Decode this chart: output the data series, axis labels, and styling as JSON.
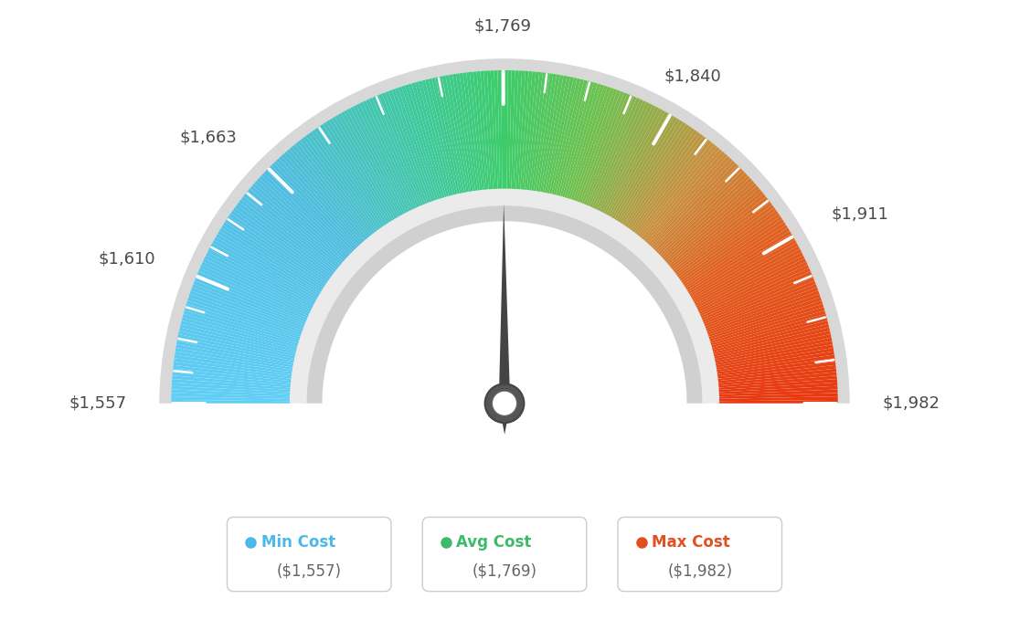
{
  "min_val": 1557,
  "avg_val": 1769,
  "max_val": 1982,
  "color_stops": [
    [
      0.0,
      "#60cef5"
    ],
    [
      0.25,
      "#50bce0"
    ],
    [
      0.4,
      "#40c8a0"
    ],
    [
      0.5,
      "#3dcc6a"
    ],
    [
      0.6,
      "#70c050"
    ],
    [
      0.72,
      "#c89040"
    ],
    [
      0.82,
      "#e06020"
    ],
    [
      1.0,
      "#e83810"
    ]
  ],
  "background_color": "#ffffff",
  "tick_values": [
    1557,
    1610,
    1663,
    1769,
    1840,
    1911,
    1982
  ],
  "tick_labels": [
    "$1,557",
    "$1,610",
    "$1,663",
    "$1,769",
    "$1,840",
    "$1,911",
    "$1,982"
  ],
  "needle_color": "#444444",
  "needle_base_outer_color": "#555555",
  "needle_base_inner_color": "#ffffff",
  "inner_arc_color": "#e0e0e0",
  "inner_arc_dark_color": "#c8c8c8",
  "outer_border_color": "#d8d8d8",
  "legend": [
    {
      "label": "Min Cost",
      "value": "($1,557)",
      "dot_color": "#4ab8e8"
    },
    {
      "label": "Avg Cost",
      "value": "($1,769)",
      "dot_color": "#3dbb6a"
    },
    {
      "label": "Max Cost",
      "value": "($1,982)",
      "dot_color": "#e05020"
    }
  ]
}
